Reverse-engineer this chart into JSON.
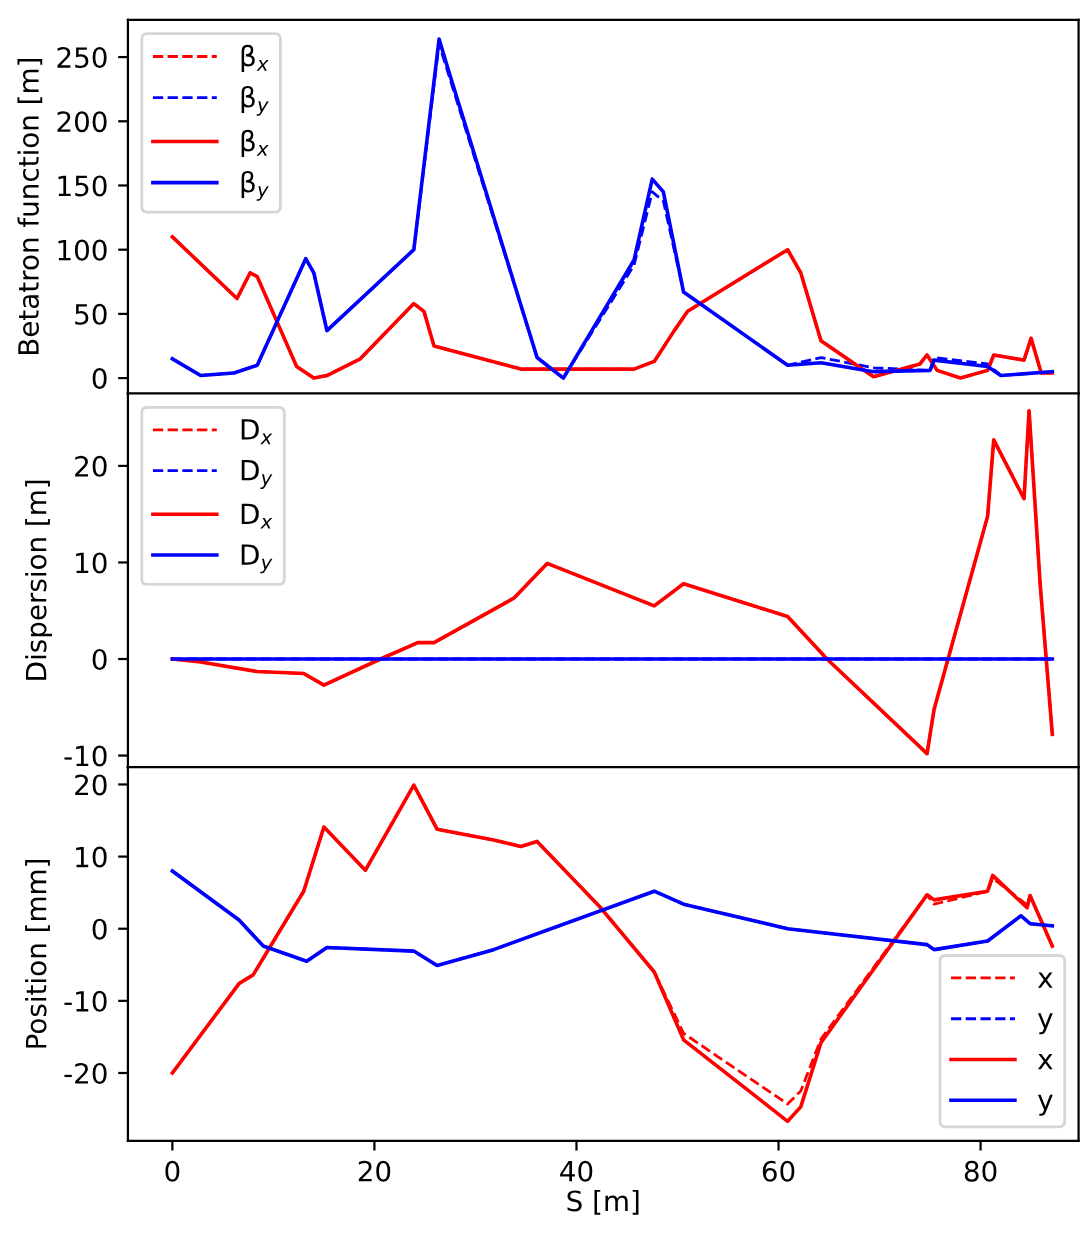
{
  "chart_data": [
    {
      "type": "line",
      "ylabel": "Betatron function [m]",
      "xlim": [
        -4.4,
        89.7
      ],
      "xticks": [
        0,
        20,
        40,
        60,
        80
      ],
      "ylim": [
        -12,
        279
      ],
      "yticks": [
        0,
        50,
        100,
        150,
        200,
        250
      ],
      "tick_labels": "y",
      "legend": "top left",
      "grid": false,
      "series": [
        {
          "name": "β$_{x}$",
          "color": "#ff0000",
          "line_style": "dashed",
          "x": [
            0,
            6.4,
            7.7,
            8.4,
            12.3,
            14,
            15.3,
            18.6,
            23.9,
            24.9,
            25.9,
            34.5,
            45.7,
            47.7,
            49.6,
            51,
            60.9,
            62.2,
            64.2,
            69.4,
            74,
            74.7,
            75.7,
            78,
            80.7,
            81.3,
            84.3,
            85,
            86,
            87.1
          ],
          "values": [
            110,
            62,
            82,
            79,
            9,
            0,
            2,
            15,
            58,
            52,
            25,
            7,
            7,
            13,
            36,
            52,
            100,
            82,
            29,
            1,
            11,
            18,
            6,
            0,
            6,
            18,
            14,
            31,
            4,
            4
          ]
        },
        {
          "name": "β$_{y}$",
          "color": "#0000ff",
          "line_style": "dashed",
          "x": [
            0,
            2.8,
            6.1,
            8.4,
            13.2,
            14,
            15.3,
            23.9,
            26.4,
            27.2,
            36.1,
            38.7,
            45.7,
            47.5,
            48.6,
            50.6,
            60.9,
            64.2,
            69.4,
            75,
            75.4,
            80.7,
            82,
            87.1
          ],
          "values": [
            15,
            2,
            4,
            10,
            93,
            82,
            37,
            100,
            260,
            240,
            16,
            0,
            88,
            145,
            138,
            67,
            10,
            16,
            8,
            6,
            16,
            11,
            2,
            5
          ]
        },
        {
          "name": "β$_{x}$",
          "color": "#ff0000",
          "line_style": "solid",
          "x": [
            0,
            6.4,
            7.7,
            8.4,
            12.3,
            14,
            15.3,
            18.6,
            23.9,
            24.9,
            25.9,
            34.5,
            45.7,
            47.7,
            49.6,
            51,
            60.9,
            62.2,
            64.2,
            69.4,
            74,
            74.7,
            75.7,
            78,
            80.7,
            81.3,
            84.3,
            85,
            86,
            87.1
          ],
          "values": [
            110,
            62,
            82,
            79,
            9,
            0,
            2,
            15,
            58,
            52,
            25,
            7,
            7,
            13,
            36,
            52,
            100,
            82,
            29,
            1,
            11,
            18,
            6,
            0,
            6,
            18,
            14,
            31,
            4,
            4
          ]
        },
        {
          "name": "β$_{y}$",
          "color": "#0000ff",
          "line_style": "solid",
          "x": [
            0,
            2.8,
            6.1,
            8.4,
            13.2,
            14,
            15.3,
            23.9,
            26.4,
            27.2,
            36.1,
            38.7,
            45.7,
            47.5,
            48.6,
            50.6,
            60.9,
            64.2,
            69.4,
            75,
            75.4,
            80.7,
            82,
            87.1
          ],
          "values": [
            15,
            2,
            4,
            10,
            93,
            82,
            37,
            100,
            264,
            243,
            16,
            0,
            92,
            155,
            145,
            67,
            10,
            12,
            5,
            6,
            14,
            9,
            2,
            5
          ]
        }
      ]
    },
    {
      "type": "line",
      "ylabel": "Dispersion [m]",
      "xlim": [
        -4.4,
        89.7
      ],
      "xticks": [
        0,
        20,
        40,
        60,
        80
      ],
      "ylim": [
        -11.2,
        27.5
      ],
      "yticks": [
        -10,
        0,
        10,
        20
      ],
      "tick_labels": "y",
      "legend": "top left",
      "grid": false,
      "series": [
        {
          "name": "D$_{x}$",
          "color": "#ff0000",
          "line_style": "dashed",
          "x": [
            0,
            2.8,
            8.4,
            13,
            15,
            20.6,
            24.3,
            25.9,
            33.8,
            37.1,
            47.7,
            50.6,
            60.9,
            64.8,
            74.7,
            75.4,
            80.7,
            81.3,
            84.3,
            84.8,
            85.9,
            87.1
          ],
          "values": [
            0,
            -0.3,
            -1.3,
            -1.5,
            -2.7,
            0,
            1.7,
            1.7,
            6.3,
            9.9,
            5.5,
            7.8,
            4.4,
            0,
            -9.8,
            -5.2,
            14.8,
            22.7,
            16.6,
            25.7,
            7.7,
            -7.8
          ]
        },
        {
          "name": "D$_{y}$",
          "color": "#0000ff",
          "line_style": "dashed",
          "x": [
            0,
            87.1
          ],
          "values": [
            0,
            0
          ]
        },
        {
          "name": "D$_{x}$",
          "color": "#ff0000",
          "line_style": "solid",
          "x": [
            0,
            2.8,
            8.4,
            13,
            15,
            20.6,
            24.3,
            25.9,
            33.8,
            37.1,
            47.7,
            50.6,
            60.9,
            64.8,
            74.7,
            75.4,
            80.7,
            81.3,
            84.3,
            84.8,
            85.9,
            87.1
          ],
          "values": [
            0,
            -0.3,
            -1.3,
            -1.5,
            -2.7,
            0,
            1.7,
            1.7,
            6.3,
            9.9,
            5.5,
            7.8,
            4.4,
            0,
            -9.8,
            -5.2,
            14.8,
            22.7,
            16.6,
            25.7,
            7.7,
            -7.8
          ]
        },
        {
          "name": "D$_{y}$",
          "color": "#0000ff",
          "line_style": "solid",
          "x": [
            0,
            87.1
          ],
          "values": [
            0,
            0
          ]
        }
      ]
    },
    {
      "type": "line",
      "xlabel": "S [m]",
      "ylabel": "Position [mm]",
      "xlim": [
        -4.4,
        89.7
      ],
      "xticks": [
        0,
        20,
        40,
        60,
        80
      ],
      "ylim": [
        -29.4,
        22.4
      ],
      "yticks": [
        -20,
        -10,
        0,
        10,
        20
      ],
      "legend": "bottom right",
      "grid": false,
      "series": [
        {
          "name": "x",
          "color": "#ff0000",
          "line_style": "dashed",
          "x": [
            0,
            6.6,
            8,
            13,
            15,
            19.1,
            23.9,
            26.2,
            31.8,
            34.5,
            36.1,
            42.4,
            47.7,
            50.6,
            60.9,
            62.2,
            64.2,
            74.7,
            75.4,
            80.7,
            81.2,
            84.6,
            84.9,
            87.1
          ],
          "values": [
            -20,
            -7.6,
            -6.4,
            5.2,
            14.1,
            8.1,
            19.9,
            13.8,
            12.3,
            11.4,
            12.1,
            2.9,
            -6,
            -14.5,
            -24.3,
            -22.5,
            -15.3,
            4.7,
            3.4,
            5.2,
            7.0,
            3.3,
            4.6,
            -2.4
          ]
        },
        {
          "name": "y",
          "color": "#0000ff",
          "line_style": "dashed",
          "x": [
            0,
            6.6,
            9,
            13.3,
            15.3,
            23.9,
            26.2,
            31.8,
            47.7,
            50.6,
            60.9,
            74.7,
            75.4,
            80.7,
            84,
            84.9,
            87.1
          ],
          "values": [
            8,
            1.2,
            -2.4,
            -4.5,
            -2.6,
            -3.1,
            -5.1,
            -2.9,
            5.2,
            3.4,
            0,
            -2.2,
            -2.9,
            -1.7,
            1.8,
            0.7,
            0.4
          ]
        },
        {
          "name": "x",
          "color": "#ff0000",
          "line_style": "solid",
          "x": [
            0,
            6.6,
            8,
            13,
            15,
            19.1,
            23.9,
            26.2,
            31.8,
            34.5,
            36.1,
            42.4,
            47.7,
            50.6,
            60.9,
            62.2,
            64.2,
            74.7,
            75.4,
            80.7,
            81.2,
            84.6,
            84.9,
            87.1
          ],
          "values": [
            -20,
            -7.6,
            -6.4,
            5.2,
            14.1,
            8.1,
            19.9,
            13.8,
            12.3,
            11.4,
            12.1,
            2.9,
            -6,
            -15.4,
            -26.7,
            -24.7,
            -15.8,
            4.7,
            4,
            5.2,
            7.4,
            2.9,
            4.6,
            -2.4
          ]
        },
        {
          "name": "y",
          "color": "#0000ff",
          "line_style": "solid",
          "x": [
            0,
            6.6,
            9,
            13.3,
            15.3,
            23.9,
            26.2,
            31.8,
            47.7,
            50.6,
            60.9,
            74.7,
            75.4,
            80.7,
            84,
            84.9,
            87.1
          ],
          "values": [
            8,
            1.2,
            -2.4,
            -4.5,
            -2.6,
            -3.1,
            -5.1,
            -2.9,
            5.2,
            3.4,
            0,
            -2.2,
            -2.9,
            -1.7,
            1.8,
            0.7,
            0.4
          ]
        }
      ]
    }
  ]
}
